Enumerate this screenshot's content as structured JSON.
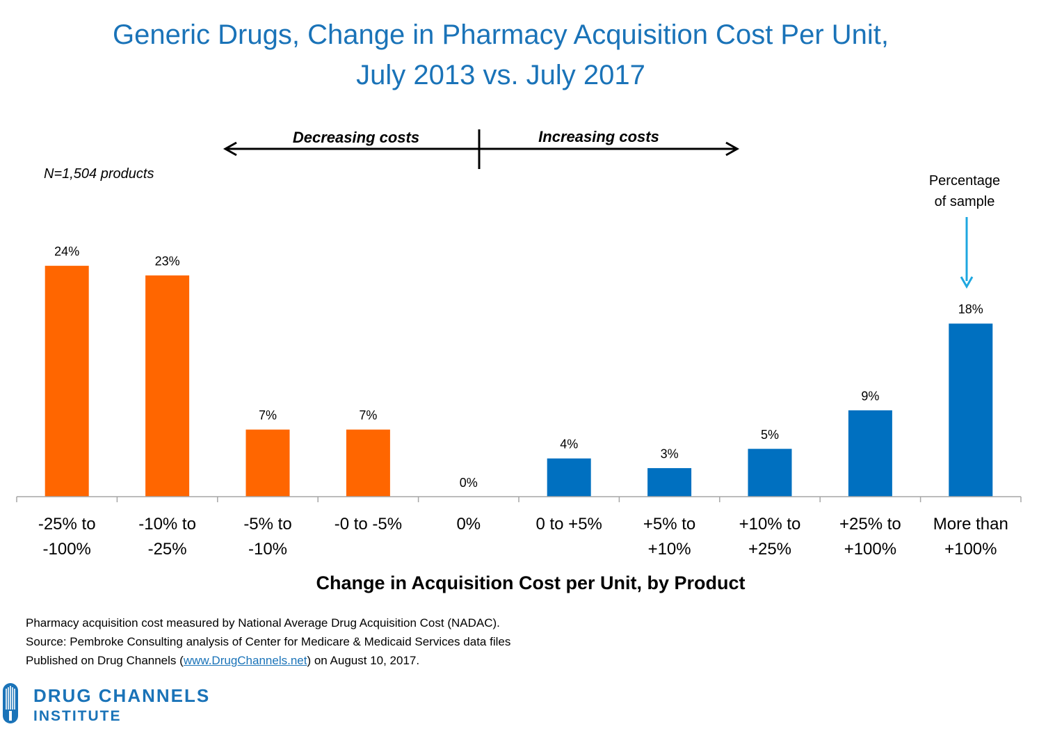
{
  "title_line1": "Generic Drugs, Change in Pharmacy Acquisition Cost Per Unit,",
  "title_line2": "July 2013 vs. July 2017",
  "sample_note": "N=1,504 products",
  "direction": {
    "decreasing": "Decreasing costs",
    "increasing": "Increasing costs"
  },
  "annotation": {
    "line1": "Percentage",
    "line2": "of sample"
  },
  "chart_data": {
    "type": "bar",
    "title": "Generic Drugs, Change in Pharmacy Acquisition Cost Per Unit, July 2013 vs. July 2017",
    "xlabel": "Change in Acquisition Cost per Unit, by Product",
    "ylabel": "",
    "ylim": [
      0,
      28
    ],
    "categories": [
      [
        "-25% to",
        "-100%"
      ],
      [
        "-10% to",
        "-25%"
      ],
      [
        "-5% to",
        "-10%"
      ],
      [
        "-0 to -5%"
      ],
      [
        "0%"
      ],
      [
        "0 to +5%"
      ],
      [
        "+5% to",
        "+10%"
      ],
      [
        "+10% to",
        "+25%"
      ],
      [
        "+25% to",
        "+100%"
      ],
      [
        "More than",
        "+100%"
      ]
    ],
    "values": [
      24,
      23,
      7,
      7,
      0,
      4,
      3,
      5,
      9,
      18
    ],
    "value_labels": [
      "24%",
      "23%",
      "7%",
      "7%",
      "0%",
      "4%",
      "3%",
      "5%",
      "9%",
      "18%"
    ],
    "bar_colors": [
      "#ff6600",
      "#ff6600",
      "#ff6600",
      "#ff6600",
      "#ff6600",
      "#0070c0",
      "#0070c0",
      "#0070c0",
      "#0070c0",
      "#0070c0"
    ],
    "annotation_color": "#1ea7e0"
  },
  "footer": {
    "line1": "Pharmacy acquisition cost measured by National Average Drug Acquisition Cost (NADAC).",
    "line2": "Source: Pembroke Consulting analysis of Center for Medicare & Medicaid Services data files",
    "line3_prefix": "Published on Drug Channels (",
    "line3_link": "www.DrugChannels.net",
    "line3_suffix": ") on August 10, 2017."
  },
  "logo": {
    "line1": "DRUG CHANNELS",
    "line2": "INSTITUTE",
    "color": "#1a73b8"
  }
}
